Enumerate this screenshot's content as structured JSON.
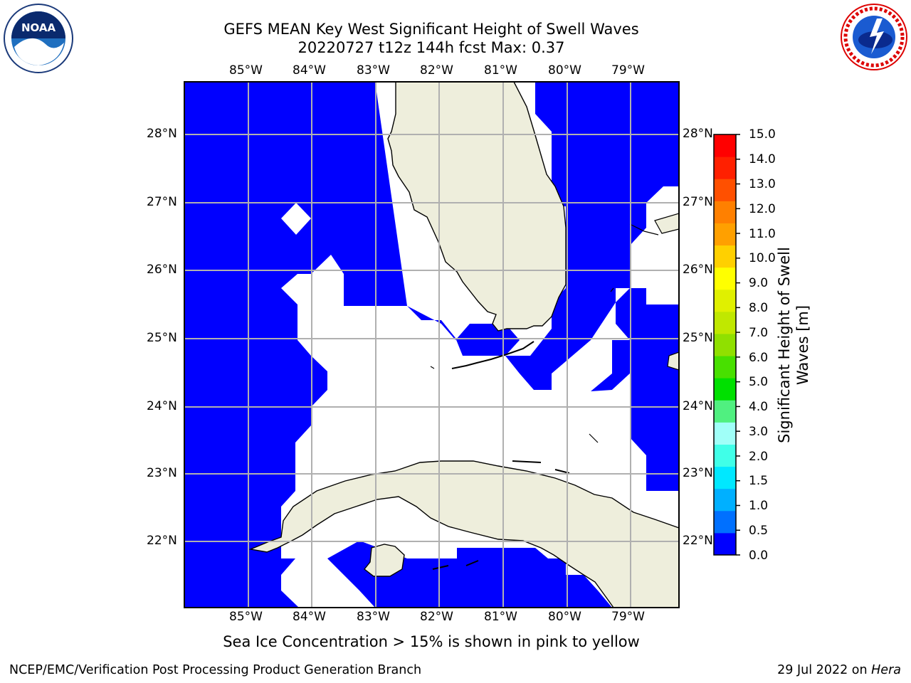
{
  "header": {
    "title_line1": "GEFS MEAN Key West Significant Height of Swell Waves",
    "title_line2": "20220727 t12z 144h fcst   Max: 0.37"
  },
  "logos": {
    "left": {
      "icon": "noaa-logo-icon",
      "text": "NOAA"
    },
    "right": {
      "icon": "nws-logo-icon",
      "text": "NATIONAL WEATHER SERVICE"
    }
  },
  "map": {
    "lon_labels": [
      "85°W",
      "84°W",
      "83°W",
      "82°W",
      "81°W",
      "80°W",
      "79°W"
    ],
    "lat_labels": [
      "28°N",
      "27°N",
      "26°N",
      "25°N",
      "24°N",
      "23°N",
      "22°N"
    ],
    "colors": {
      "water_field": "#0000ff",
      "no_data": "#ffffff",
      "land": "#eeeedc",
      "grid": "#b0b0b0"
    }
  },
  "colorbar": {
    "title_line1": "Significant Height of Swell",
    "title_line2": "Waves [m]",
    "ticks": [
      "15.0",
      "14.0",
      "13.0",
      "12.0",
      "11.0",
      "10.0",
      "9.0",
      "8.0",
      "7.0",
      "6.0",
      "5.0",
      "4.0",
      "3.0",
      "2.0",
      "1.5",
      "1.0",
      "0.5",
      "0.0"
    ],
    "colors": [
      "#0000ff",
      "#0070ff",
      "#00b0ff",
      "#00e8ff",
      "#40ffe8",
      "#a0fff8",
      "#50f080",
      "#00e000",
      "#48e000",
      "#90e000",
      "#c0e800",
      "#e0f000",
      "#ffff00",
      "#ffd000",
      "#ffa000",
      "#ff8000",
      "#ff5000",
      "#ff2000",
      "#ff0000"
    ]
  },
  "note": "Sea Ice Concentration > 15% is shown in pink to yellow",
  "footer": {
    "left": "NCEP/EMC/Verification Post Processing Product Generation Branch",
    "right_prefix": "29 Jul 2022 on ",
    "right_host": "Hera"
  }
}
